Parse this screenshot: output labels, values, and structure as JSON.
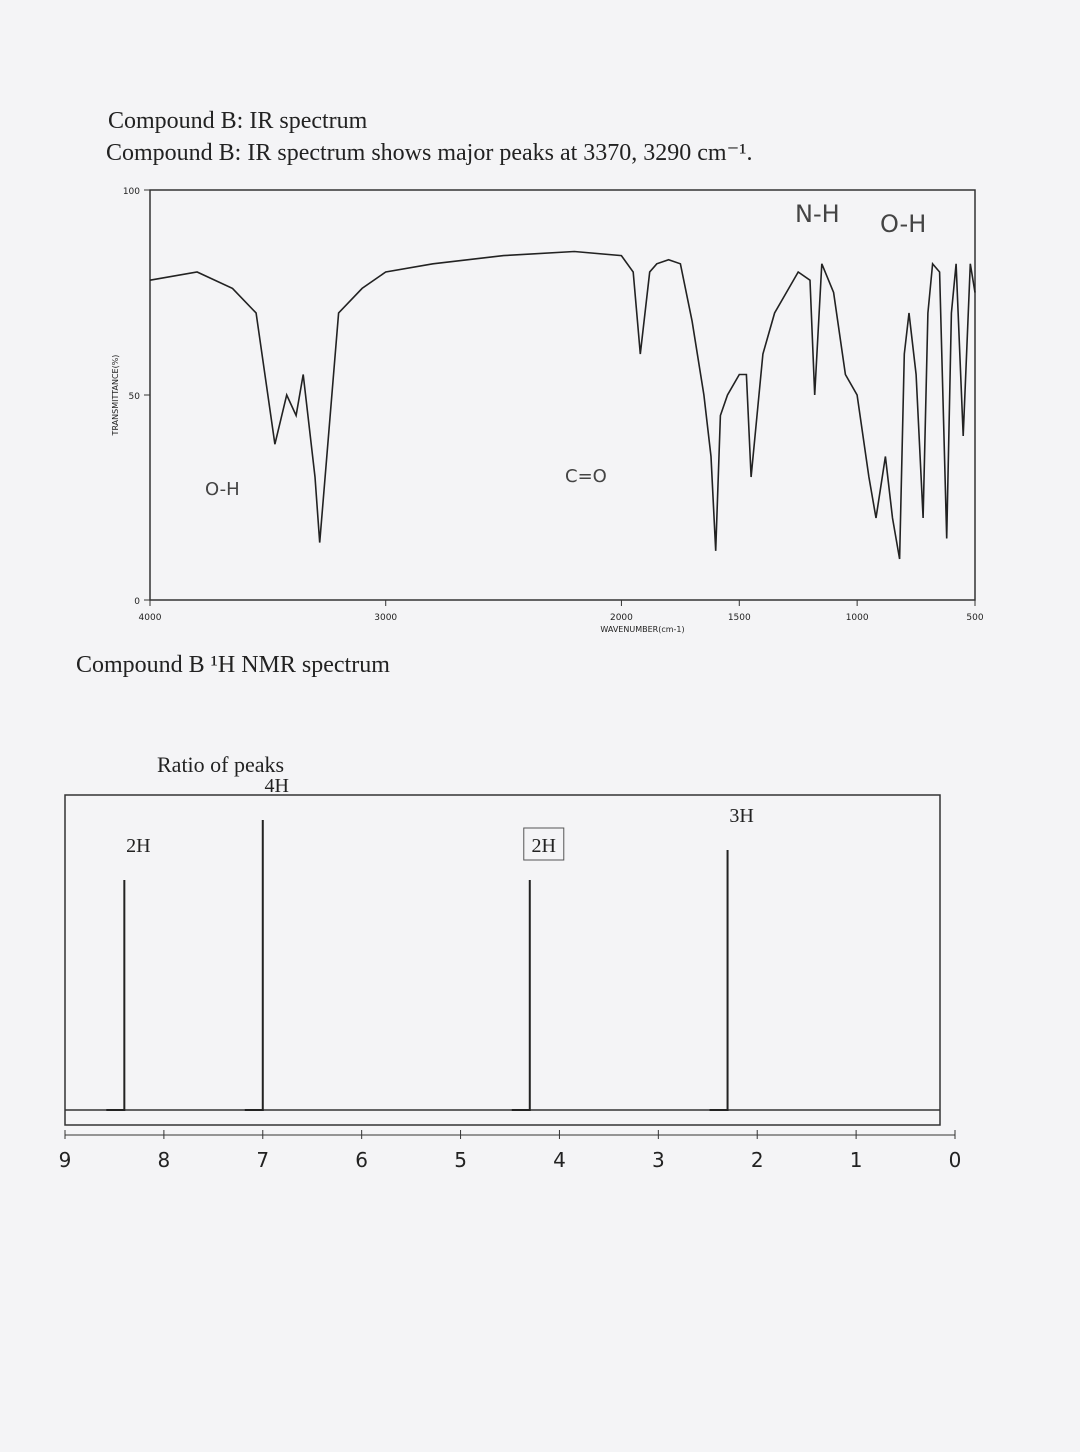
{
  "header": {
    "title": "Compound B:  IR spectrum",
    "description": "Compound B: IR spectrum shows major peaks at 3370, 3290 cm⁻¹.",
    "handwritten_notes": [
      "N-H",
      "O-H"
    ]
  },
  "chart_data": [
    {
      "type": "line",
      "y_label": "TRANSMITTANCE(%)",
      "x_label": "WAVENUMBER(cm-1)",
      "annotations": [
        "O-H",
        "C=O"
      ],
      "color": "#222222",
      "xlim": [
        4000,
        500
      ],
      "xticks": [
        4000,
        3000,
        2000,
        1500,
        1000,
        500
      ],
      "ylim": [
        0,
        100
      ],
      "yticks": [
        0,
        50,
        100
      ],
      "x": [
        4000,
        3800,
        3650,
        3550,
        3470,
        3420,
        3380,
        3350,
        3300,
        3280,
        3250,
        3200,
        3100,
        3000,
        2800,
        2500,
        2200,
        2000,
        1950,
        1920,
        1880,
        1850,
        1800,
        1750,
        1700,
        1650,
        1620,
        1600,
        1580,
        1550,
        1500,
        1470,
        1450,
        1400,
        1350,
        1300,
        1250,
        1200,
        1180,
        1150,
        1100,
        1050,
        1000,
        950,
        920,
        880,
        850,
        820,
        800,
        780,
        750,
        720,
        700,
        680,
        650,
        620,
        600,
        580,
        550,
        520,
        500
      ],
      "values": [
        78,
        80,
        76,
        70,
        38,
        50,
        45,
        55,
        30,
        14,
        35,
        70,
        76,
        80,
        82,
        84,
        85,
        84,
        80,
        60,
        80,
        82,
        83,
        82,
        68,
        50,
        35,
        12,
        45,
        50,
        55,
        55,
        30,
        60,
        70,
        75,
        80,
        78,
        50,
        82,
        75,
        55,
        50,
        30,
        20,
        35,
        20,
        10,
        60,
        70,
        55,
        20,
        70,
        82,
        80,
        15,
        70,
        82,
        40,
        82,
        75
      ]
    },
    {
      "type": "stick",
      "title": "Compound B ¹H NMR spectrum",
      "subtitle": "Ratio of peaks",
      "color": "#222222",
      "xlim": [
        9,
        0
      ],
      "xticks": [
        9,
        8,
        7,
        6,
        5,
        4,
        3,
        2,
        1,
        0
      ],
      "x": [
        8.4,
        7.0,
        4.3,
        2.3
      ],
      "values": [
        2,
        4,
        2,
        3
      ],
      "value_labels": [
        "2H",
        "4H",
        "2H",
        "3H"
      ]
    }
  ]
}
